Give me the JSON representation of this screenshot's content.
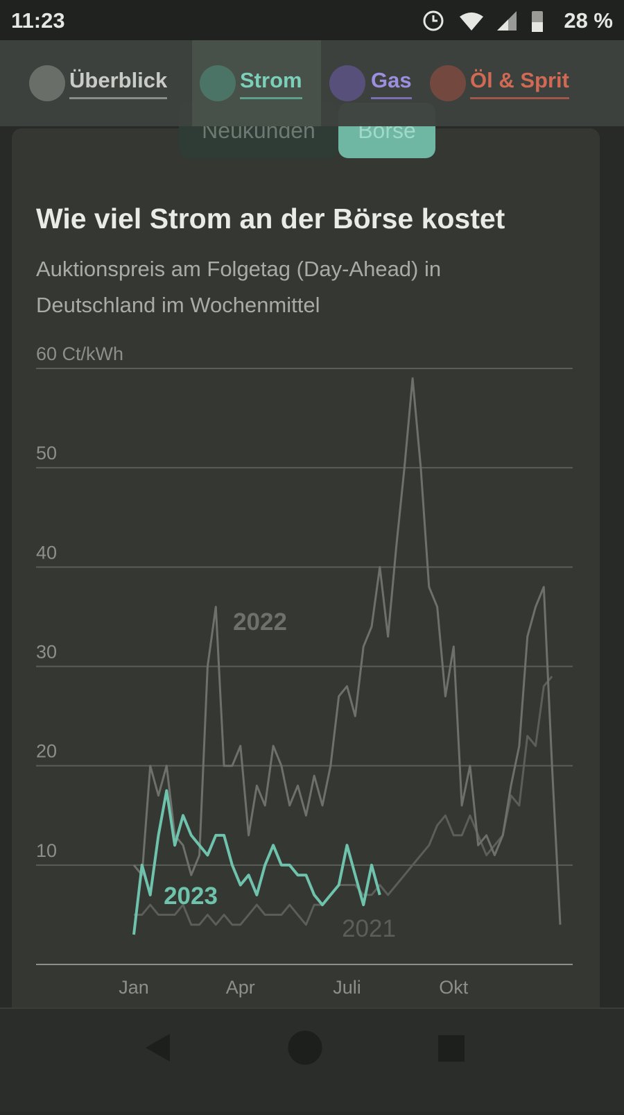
{
  "status_bar": {
    "time": "11:23",
    "battery": "28 %"
  },
  "tabs": [
    "Überblick",
    "Strom",
    "Gas",
    "Öl & Sprit"
  ],
  "toggle": [
    "Neukunden",
    "Börse"
  ],
  "chart_data": {
    "type": "line",
    "title": "Wie viel Strom an der Börse kostet",
    "subtitle": "Auktionspreis am Folgetag (Day-Ahead) in Deutschland im Wochenmittel",
    "x": [
      1,
      2,
      3,
      4,
      5,
      6,
      7,
      8,
      9,
      10,
      11,
      12,
      13,
      14,
      15,
      16,
      17,
      18,
      19,
      20,
      21,
      22,
      23,
      24,
      25,
      26,
      27,
      28,
      29,
      30,
      31,
      32,
      33,
      34,
      35,
      36,
      37,
      38,
      39,
      40,
      41,
      42,
      43,
      44,
      45,
      46,
      47,
      48,
      49,
      50,
      51,
      52,
      53
    ],
    "xlim": [
      1,
      53
    ],
    "xticks": [
      {
        "value": 1,
        "label": "Jan"
      },
      {
        "value": 14,
        "label": "Apr"
      },
      {
        "value": 27,
        "label": "Juli"
      },
      {
        "value": 40,
        "label": "Okt"
      }
    ],
    "ylim": [
      0,
      60
    ],
    "yticks": [
      10,
      20,
      30,
      40,
      50,
      {
        "value": 60,
        "label": "60 Ct/kWh"
      }
    ],
    "grid": true,
    "series": [
      {
        "name": "2021",
        "color": "#5c5f59",
        "values": [
          5,
          5,
          6,
          5,
          5,
          5,
          6,
          4,
          4,
          5,
          4,
          5,
          4,
          4,
          5,
          6,
          5,
          5,
          5,
          6,
          5,
          4,
          6,
          6,
          7,
          8,
          8,
          8,
          7,
          7,
          8,
          7,
          8,
          9,
          10,
          11,
          12,
          14,
          15,
          13,
          13,
          15,
          13,
          11,
          12,
          13,
          17,
          16,
          23,
          22,
          28,
          29,
          null
        ]
      },
      {
        "name": "2022",
        "color": "#6e716b",
        "values": [
          10,
          9,
          20,
          17,
          20,
          13,
          12,
          9,
          11,
          30,
          36,
          20,
          20,
          22,
          13,
          18,
          16,
          22,
          20,
          16,
          18,
          15,
          19,
          16,
          20,
          27,
          28,
          25,
          32,
          34,
          40,
          33,
          42,
          50,
          59,
          50,
          38,
          36,
          27,
          32,
          16,
          20,
          12,
          13,
          11,
          13,
          18,
          22,
          33,
          36,
          38,
          20,
          4
        ]
      },
      {
        "name": "2023",
        "color": "#6fc3ad",
        "values": [
          3,
          10,
          7,
          13,
          17.5,
          12,
          15,
          13,
          12,
          11,
          13,
          13,
          10,
          8,
          9,
          7,
          10,
          12,
          10,
          10,
          9,
          9,
          7,
          6,
          7,
          8,
          12,
          9,
          6,
          10,
          7,
          null,
          null,
          null,
          null,
          null,
          null,
          null,
          null,
          null,
          null,
          null,
          null,
          null,
          null,
          null,
          null,
          null,
          null,
          null,
          null,
          null,
          null
        ]
      }
    ]
  }
}
